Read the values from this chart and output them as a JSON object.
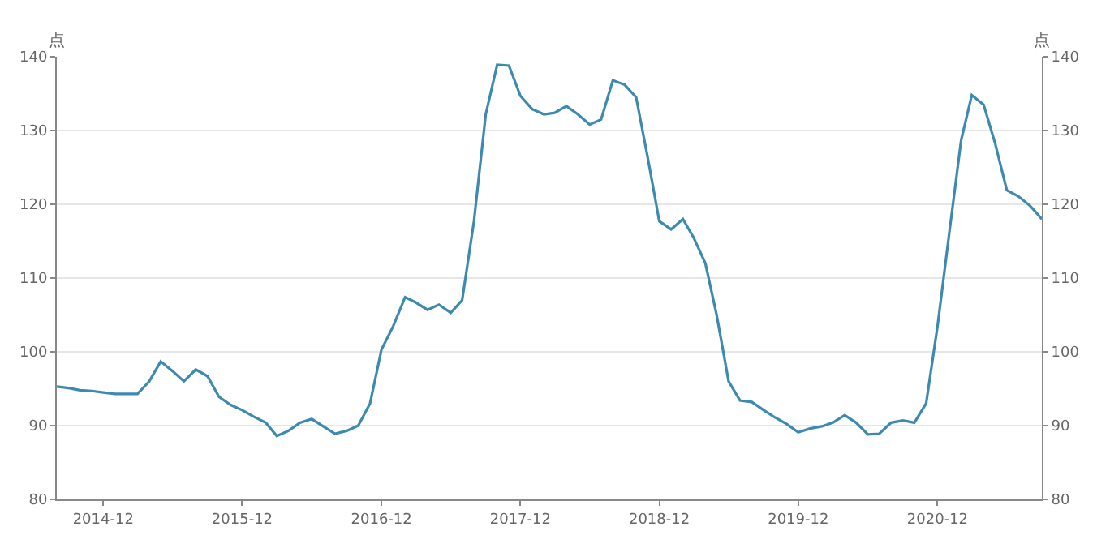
{
  "chart_data": {
    "type": "line",
    "x": [
      "2014-08",
      "2014-09",
      "2014-10",
      "2014-11",
      "2014-12",
      "2015-01",
      "2015-02",
      "2015-03",
      "2015-04",
      "2015-05",
      "2015-06",
      "2015-07",
      "2015-08",
      "2015-09",
      "2015-10",
      "2015-11",
      "2015-12",
      "2016-01",
      "2016-02",
      "2016-03",
      "2016-04",
      "2016-05",
      "2016-06",
      "2016-07",
      "2016-08",
      "2016-09",
      "2016-10",
      "2016-11",
      "2016-12",
      "2017-01",
      "2017-02",
      "2017-03",
      "2017-04",
      "2017-05",
      "2017-06",
      "2017-07",
      "2017-08",
      "2017-09",
      "2017-10",
      "2017-11",
      "2017-12",
      "2018-01",
      "2018-02",
      "2018-03",
      "2018-04",
      "2018-05",
      "2018-06",
      "2018-07",
      "2018-08",
      "2018-09",
      "2018-10",
      "2018-11",
      "2018-12",
      "2019-01",
      "2019-02",
      "2019-03",
      "2019-04",
      "2019-05",
      "2019-06",
      "2019-07",
      "2019-08",
      "2019-09",
      "2019-10",
      "2019-11",
      "2019-12",
      "2020-01",
      "2020-02",
      "2020-03",
      "2020-04",
      "2020-05",
      "2020-06",
      "2020-07",
      "2020-08",
      "2020-09",
      "2020-10",
      "2020-11",
      "2020-12",
      "2021-01",
      "2021-02",
      "2021-03",
      "2021-04",
      "2021-05",
      "2021-06",
      "2021-07",
      "2021-08",
      "2021-09"
    ],
    "series": [
      {
        "color": "#3d8ab0",
        "values": [
          95.3,
          95.1,
          94.8,
          94.7,
          94.5,
          94.3,
          94.3,
          94.3,
          96.0,
          98.7,
          97.4,
          96.0,
          97.6,
          96.7,
          93.9,
          92.8,
          92.1,
          91.2,
          90.4,
          88.6,
          89.3,
          90.4,
          90.9,
          89.9,
          88.9,
          89.3,
          90.0,
          93.0,
          100.3,
          103.5,
          107.4,
          106.7,
          105.7,
          106.4,
          105.3,
          107.0,
          117.7,
          132.2,
          138.9,
          138.8,
          134.7,
          132.9,
          132.2,
          132.4,
          133.3,
          132.2,
          130.8,
          131.5,
          136.8,
          136.2,
          134.5,
          126.2,
          117.7,
          116.6,
          118.0,
          115.5,
          112.0,
          104.9,
          96.0,
          93.4,
          93.2,
          92.1,
          91.1,
          90.2,
          89.1,
          89.6,
          89.9,
          90.4,
          91.4,
          90.4,
          88.8,
          88.9,
          90.4,
          90.7,
          90.4,
          93.0,
          103.5,
          116.2,
          128.7,
          134.8,
          133.5,
          128.3,
          121.9,
          121.1,
          119.8,
          118.0
        ]
      }
    ],
    "ylabel": "点",
    "y2label": "点",
    "xlim": [
      "2014-08",
      "2021-09"
    ],
    "xticks": [
      "2014-12",
      "2015-12",
      "2016-12",
      "2017-12",
      "2018-12",
      "2019-12",
      "2020-12"
    ],
    "ylim": [
      80,
      140
    ],
    "yticks": [
      80,
      90,
      100,
      110,
      120,
      130,
      140
    ],
    "y2lim": [
      80,
      140
    ],
    "y2ticks": [
      80,
      90,
      100,
      110,
      120,
      130,
      140
    ],
    "grid": "y",
    "marker": "none",
    "line_style": "solid"
  }
}
